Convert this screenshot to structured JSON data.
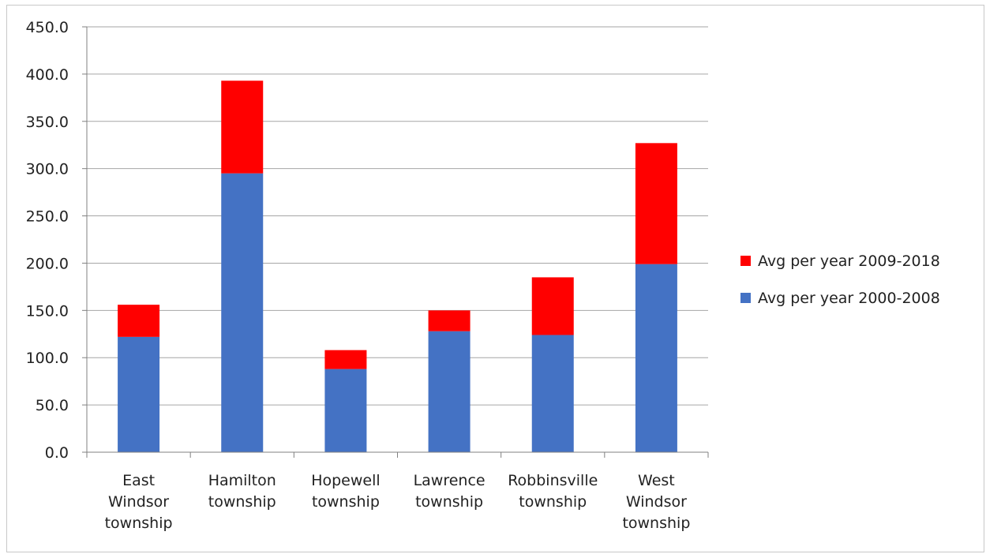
{
  "chart_data": {
    "type": "bar",
    "stacked": true,
    "title": "",
    "xlabel": "",
    "ylabel": "",
    "ylim": [
      0,
      450
    ],
    "y_ticks": [
      "0.0",
      "50.0",
      "100.0",
      "150.0",
      "200.0",
      "250.0",
      "300.0",
      "350.0",
      "400.0",
      "450.0"
    ],
    "grid": true,
    "legend_position": "right",
    "categories": [
      [
        "East",
        "Windsor",
        "township"
      ],
      [
        "Hamilton",
        "township"
      ],
      [
        "Hopewell",
        "township"
      ],
      [
        "Lawrence",
        "township"
      ],
      [
        "Robbinsville",
        "township"
      ],
      [
        "West",
        "Windsor",
        "township"
      ]
    ],
    "series": [
      {
        "name": "Avg per year 2000-2008",
        "color": "#4472C4",
        "values": [
          122,
          295,
          88,
          128,
          124,
          199
        ]
      },
      {
        "name": "Avg per year 2009-2018",
        "color": "#FF0000",
        "values": [
          34,
          98,
          20,
          22,
          61,
          128
        ]
      }
    ],
    "legend": [
      "Avg per year 2009-2018",
      "Avg per year 2000-2008"
    ]
  }
}
